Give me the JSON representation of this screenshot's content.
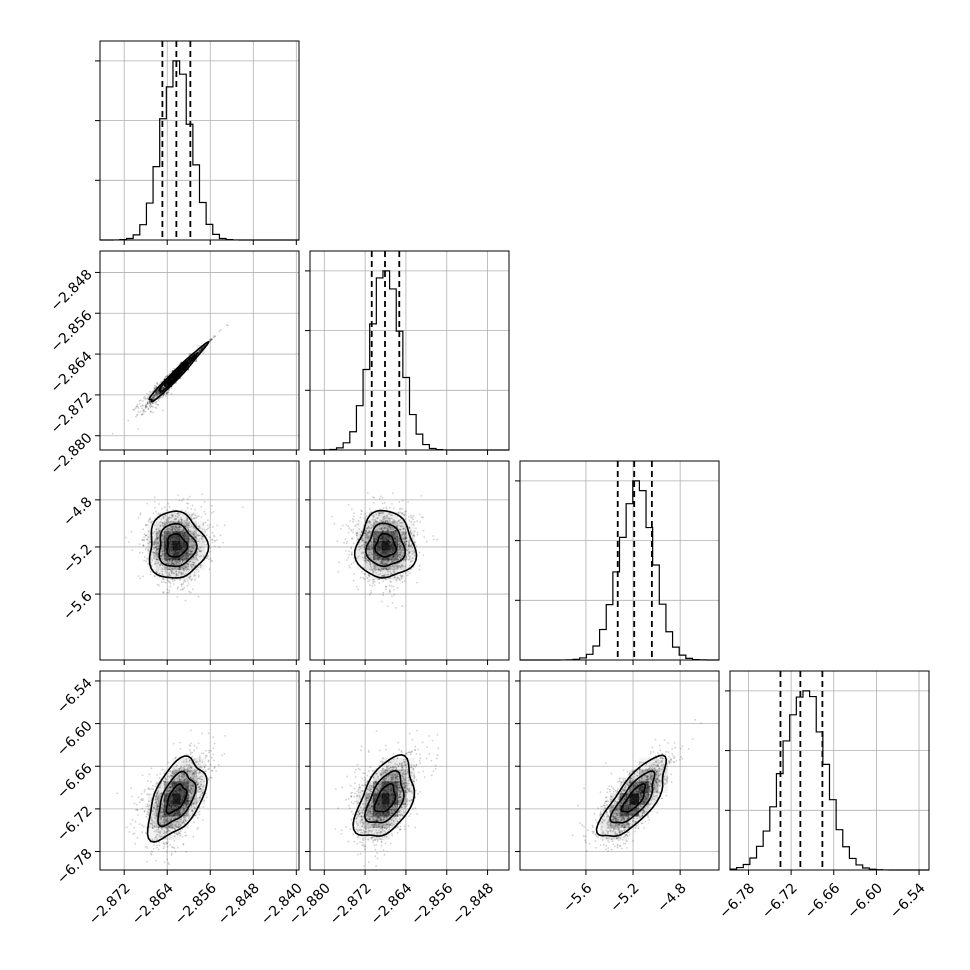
{
  "chart_data": {
    "type": "corner",
    "params": [
      {
        "range": [
          -2.8765,
          -2.8395
        ],
        "ticks": [
          -2.872,
          -2.864,
          -2.856,
          -2.848,
          -2.84
        ],
        "tick_labels": [
          "−2.872",
          "−2.864",
          "−2.856",
          "−2.848",
          "−2.840"
        ],
        "quantiles": [
          -2.8649,
          -2.8623,
          -2.8597
        ],
        "mean": -2.8623,
        "sd": 0.0028
      },
      {
        "range": [
          -2.8828,
          -2.8438
        ],
        "ticks": [
          -2.88,
          -2.872,
          -2.864,
          -2.856,
          -2.848
        ],
        "tick_labels": [
          "−2.880",
          "−2.872",
          "−2.864",
          "−2.856",
          "−2.848"
        ],
        "quantiles": [
          -2.8707,
          -2.8681,
          -2.8653
        ],
        "mean": -2.868,
        "sd": 0.003
      },
      {
        "range": [
          -6.16,
          -4.47
        ],
        "ticks": [
          -5.6,
          -5.2,
          -4.8
        ],
        "tick_labels": [
          "−5.6",
          "−5.2",
          "−4.8"
        ],
        "quantiles": [
          -5.33,
          -5.19,
          -5.04
        ],
        "mean": -5.19,
        "sd": 0.15
      },
      {
        "range": [
          -6.806,
          -6.526
        ],
        "ticks": [
          -6.78,
          -6.72,
          -6.66,
          -6.6,
          -6.54
        ],
        "tick_labels": [
          "−6.78",
          "−6.72",
          "−6.66",
          "−6.60",
          "−6.54"
        ],
        "quantiles": [
          -6.735,
          -6.707,
          -6.676
        ],
        "mean": -6.706,
        "sd": 0.03
      }
    ],
    "correlations": {
      "1-0": 0.98,
      "2-0": 0.0,
      "2-1": 0.0,
      "3-0": 0.5,
      "3-1": 0.45,
      "3-2": 0.75
    },
    "grid": true,
    "colors": {
      "line": "#000000",
      "grid": "#b0b0b0",
      "density": "#000000"
    }
  }
}
